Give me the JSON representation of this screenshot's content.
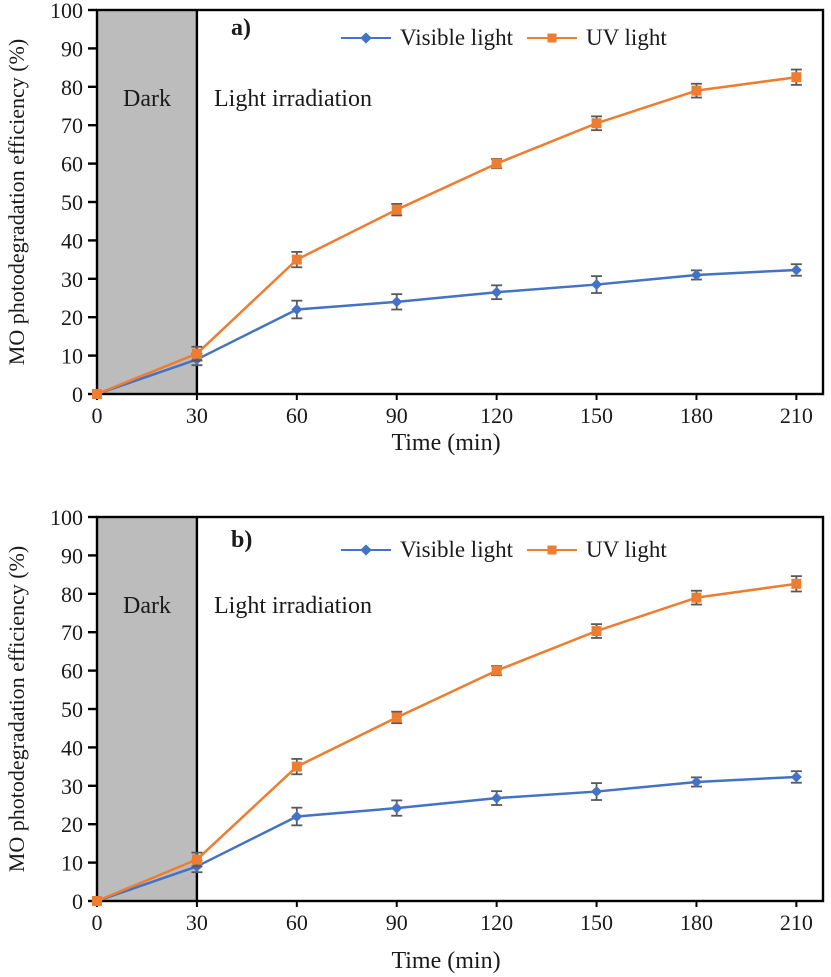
{
  "page": {
    "background": "#ffffff"
  },
  "colors": {
    "visible_light": "#4472c4",
    "uv_light": "#ed7d31",
    "error_bar": "#595959",
    "dark_region_fill": "#bcbcbc",
    "axis": "#000000",
    "text": "#1a1a1a"
  },
  "chart_data": [
    {
      "type": "line",
      "panel_label": "a)",
      "xlabel": "Time (min)",
      "ylabel": "MO photodegradation efficiency (%)",
      "xlim": [
        0,
        218
      ],
      "ylim": [
        0,
        100
      ],
      "xticks": [
        0,
        30,
        60,
        90,
        120,
        150,
        180,
        210
      ],
      "yticks": [
        0,
        10,
        20,
        30,
        40,
        50,
        60,
        70,
        80,
        90,
        100
      ],
      "grid": false,
      "legend_position": "top-center",
      "annotations": {
        "dark_label": "Dark",
        "light_label": "Light irradiation",
        "dark_region": [
          0,
          30
        ]
      },
      "x": [
        0,
        30,
        60,
        90,
        120,
        150,
        180,
        210
      ],
      "series": [
        {
          "name": "Visible light",
          "marker": "diamond",
          "color": "#4472c4",
          "values": [
            0,
            9,
            22,
            24,
            26.5,
            28.5,
            31,
            32.3
          ],
          "errors": [
            0,
            1.5,
            2.3,
            2,
            1.8,
            2.2,
            1.2,
            1.5
          ]
        },
        {
          "name": "UV light",
          "marker": "square",
          "color": "#ed7d31",
          "values": [
            0,
            10.5,
            35,
            48,
            60,
            70.5,
            79,
            82.5
          ],
          "errors": [
            0,
            1.8,
            2,
            1.5,
            1.2,
            1.8,
            1.8,
            2
          ]
        }
      ]
    },
    {
      "type": "line",
      "panel_label": "b)",
      "xlabel": "Time (min)",
      "ylabel": "MO photodegradation efficiency (%)",
      "xlim": [
        0,
        218
      ],
      "ylim": [
        0,
        100
      ],
      "xticks": [
        0,
        30,
        60,
        90,
        120,
        150,
        180,
        210
      ],
      "yticks": [
        0,
        10,
        20,
        30,
        40,
        50,
        60,
        70,
        80,
        90,
        100
      ],
      "grid": false,
      "legend_position": "top-center",
      "annotations": {
        "dark_label": "Dark",
        "light_label": "Light irradiation",
        "dark_region": [
          0,
          30
        ]
      },
      "x": [
        0,
        30,
        60,
        90,
        120,
        150,
        180,
        210
      ],
      "series": [
        {
          "name": "Visible light",
          "marker": "diamond",
          "color": "#4472c4",
          "values": [
            0,
            9,
            22,
            24.2,
            26.8,
            28.5,
            31,
            32.3
          ],
          "errors": [
            0,
            1.5,
            2.3,
            2,
            1.8,
            2.2,
            1.2,
            1.5
          ]
        },
        {
          "name": "UV light",
          "marker": "square",
          "color": "#ed7d31",
          "values": [
            0,
            10.8,
            35,
            47.8,
            60,
            70.3,
            79,
            82.6
          ],
          "errors": [
            0,
            1.8,
            2,
            1.5,
            1.2,
            1.8,
            1.8,
            2
          ]
        }
      ]
    }
  ]
}
